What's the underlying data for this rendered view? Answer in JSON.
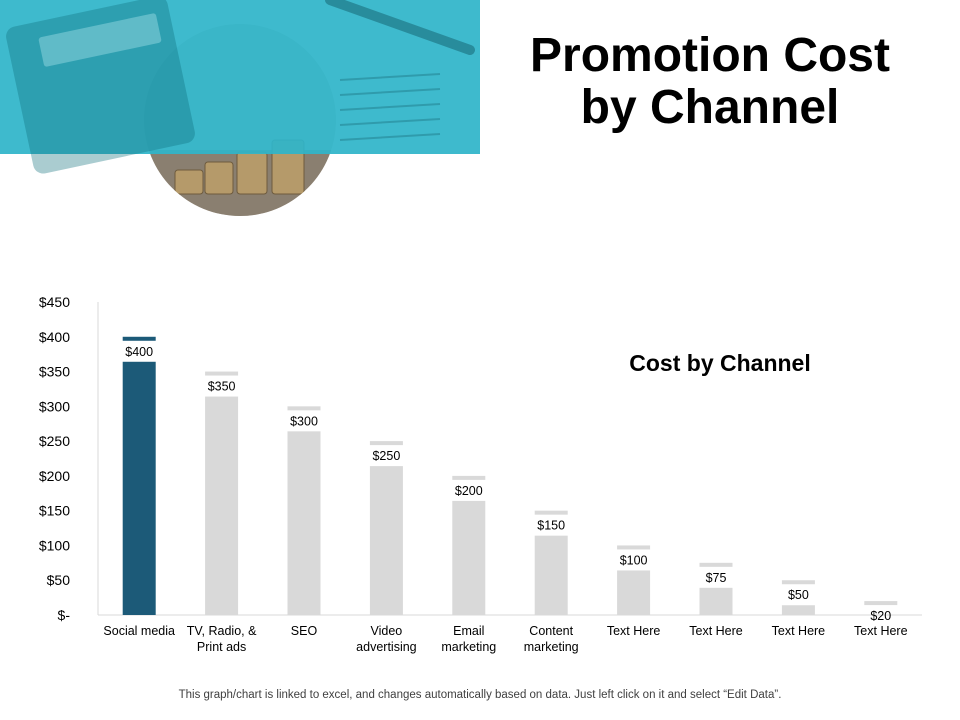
{
  "slide": {
    "title": "Promotion Cost by Channel",
    "footnote": "This graph/chart is linked to excel, and changes automatically based on data. Just left click on it and select “Edit Data”."
  },
  "colors": {
    "accent_teal": "#2fb5c9",
    "highlight_bar": "#1c5a78",
    "default_bar": "#d9d9d9"
  },
  "chart_data": {
    "type": "bar",
    "title": "Cost by Channel",
    "xlabel": "",
    "ylabel": "",
    "categories": [
      "Social media",
      "TV, Radio, & Print ads",
      "SEO",
      "Video advertising",
      "Email marketing",
      "Content marketing",
      "Text Here",
      "Text Here",
      "Text Here",
      "Text Here"
    ],
    "category_lines": [
      [
        "Social media"
      ],
      [
        "TV, Radio, &",
        "Print ads"
      ],
      [
        "SEO"
      ],
      [
        "Video",
        "advertising"
      ],
      [
        "Email",
        "marketing"
      ],
      [
        "Content",
        "marketing"
      ],
      [
        "Text Here"
      ],
      [
        "Text Here"
      ],
      [
        "Text Here"
      ],
      [
        "Text Here"
      ]
    ],
    "values": [
      400,
      350,
      300,
      250,
      200,
      150,
      100,
      75,
      50,
      20
    ],
    "value_labels": [
      "$400",
      "$350",
      "$300",
      "$250",
      "$200",
      "$150",
      "$100",
      "$75",
      "$50",
      "$20"
    ],
    "highlight_index": 0,
    "ylim": [
      0,
      450
    ],
    "yticks": [
      0,
      50,
      100,
      150,
      200,
      250,
      300,
      350,
      400,
      450
    ],
    "ytick_labels": [
      "$-",
      "$50",
      "$100",
      "$150",
      "$200",
      "$250",
      "$300",
      "$350",
      "$400",
      "$450"
    ],
    "grid": false,
    "title_position": "top-right"
  }
}
